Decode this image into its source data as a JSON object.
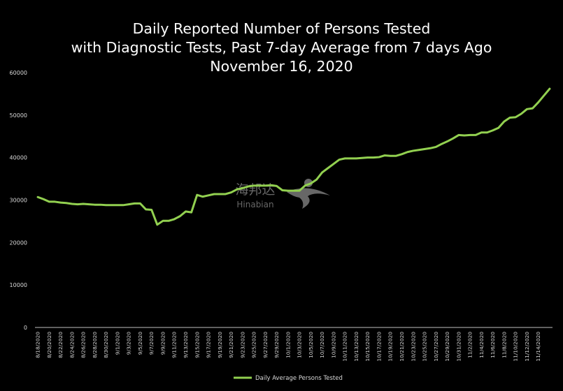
{
  "chart_data": {
    "type": "line",
    "title_lines": [
      "Daily Reported Number of Persons Tested",
      "with Diagnostic Tests, Past 7-day Average from 7 days Ago",
      "November 16, 2020"
    ],
    "ylim": [
      0,
      60000
    ],
    "y_ticks": [
      "0",
      "10000",
      "20000",
      "30000",
      "40000",
      "50000",
      "60000"
    ],
    "x_tick_labels": [
      "8/18/2020",
      "8/20/2020",
      "8/22/2020",
      "8/24/2020",
      "8/26/2020",
      "8/28/2020",
      "8/30/2020",
      "9/1/2020",
      "9/3/2020",
      "9/5/2020",
      "9/7/2020",
      "9/9/2020",
      "9/11/2020",
      "9/13/2020",
      "9/15/2020",
      "9/17/2020",
      "9/19/2020",
      "9/21/2020",
      "9/23/2020",
      "9/25/2020",
      "9/27/2020",
      "9/29/2020",
      "10/1/2020",
      "10/3/2020",
      "10/5/2020",
      "10/7/2020",
      "10/9/2020",
      "10/11/2020",
      "10/13/2020",
      "10/15/2020",
      "10/17/2020",
      "10/19/2020",
      "10/21/2020",
      "10/23/2020",
      "10/25/2020",
      "10/27/2020",
      "10/29/2020",
      "10/31/2020",
      "11/2/2020",
      "11/4/2020",
      "11/6/2020",
      "11/8/2020",
      "11/10/2020",
      "11/12/2020",
      "11/14/2020"
    ],
    "grid": false,
    "legend_position": "bottom",
    "line_color": "#92d050",
    "series": [
      {
        "name": "Daily Average Persons Tested",
        "values": [
          30700,
          30200,
          29600,
          29600,
          29400,
          29300,
          29100,
          29000,
          29100,
          29000,
          28900,
          28900,
          28800,
          28800,
          28800,
          28800,
          29000,
          29200,
          29200,
          27800,
          27700,
          24200,
          25100,
          25100,
          25500,
          26200,
          27300,
          27100,
          31200,
          30800,
          31100,
          31400,
          31400,
          31400,
          31800,
          32500,
          32800,
          33200,
          33400,
          33400,
          33400,
          33500,
          33300,
          32300,
          32200,
          32200,
          32200,
          33400,
          33900,
          34800,
          36500,
          37500,
          38500,
          39500,
          39800,
          39800,
          39800,
          39900,
          40000,
          40000,
          40100,
          40500,
          40400,
          40400,
          40800,
          41300,
          41600,
          41800,
          42000,
          42200,
          42500,
          43200,
          43800,
          44500,
          45300,
          45200,
          45300,
          45300,
          45900,
          45900,
          46400,
          47000,
          48500,
          49400,
          49500,
          50300,
          51400,
          51600,
          53000,
          54600,
          56200
        ]
      }
    ]
  },
  "watermark": {
    "cn_text": "海邦达",
    "en_text": "Hinabian"
  },
  "icons": {
    "watermark_logo": "swallow-bird-icon",
    "legend_marker": "legend-line-icon"
  }
}
